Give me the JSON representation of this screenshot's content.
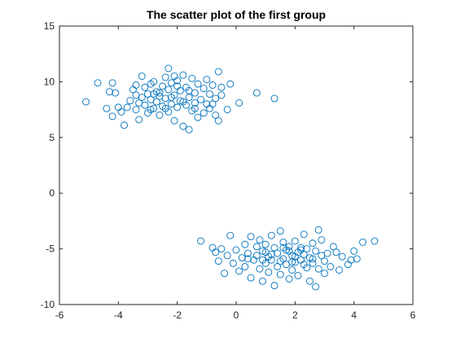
{
  "chart_data": {
    "type": "scatter",
    "title": "The scatter plot of the first group",
    "xlabel": "",
    "ylabel": "",
    "xlim": [
      -6,
      6
    ],
    "ylim": [
      -10,
      15
    ],
    "xticks": [
      -6,
      -4,
      -2,
      0,
      2,
      4,
      6
    ],
    "yticks": [
      -10,
      -5,
      0,
      5,
      10,
      15
    ],
    "grid": false,
    "legend": "none",
    "marker": "open-circle",
    "marker_color": "#0072bd",
    "series": [
      {
        "points": [
          [
            -5.1,
            8.2
          ],
          [
            -4.7,
            9.9
          ],
          [
            -4.4,
            7.6
          ],
          [
            -4.3,
            9.1
          ],
          [
            -4.2,
            9.9
          ],
          [
            -4.2,
            6.9
          ],
          [
            -4.1,
            9.0
          ],
          [
            -4.0,
            7.7
          ],
          [
            -3.9,
            7.3
          ],
          [
            -3.8,
            6.1
          ],
          [
            -3.7,
            7.7
          ],
          [
            -3.6,
            8.3
          ],
          [
            -3.5,
            9.3
          ],
          [
            -3.4,
            7.5
          ],
          [
            -3.4,
            8.8
          ],
          [
            -3.3,
            8.1
          ],
          [
            -3.3,
            6.6
          ],
          [
            -3.2,
            10.5
          ],
          [
            -3.2,
            8.6
          ],
          [
            -3.1,
            9.5
          ],
          [
            -3.1,
            7.9
          ],
          [
            -3.0,
            8.9
          ],
          [
            -3.0,
            7.2
          ],
          [
            -2.9,
            9.8
          ],
          [
            -2.9,
            8.4
          ],
          [
            -2.8,
            7.6
          ],
          [
            -2.8,
            10.0
          ],
          [
            -2.7,
            8.2
          ],
          [
            -2.7,
            9.1
          ],
          [
            -2.6,
            7.0
          ],
          [
            -2.6,
            8.7
          ],
          [
            -2.5,
            9.6
          ],
          [
            -2.5,
            7.8
          ],
          [
            -2.4,
            10.4
          ],
          [
            -2.4,
            8.5
          ],
          [
            -2.3,
            11.2
          ],
          [
            -2.3,
            9.3
          ],
          [
            -2.3,
            7.3
          ],
          [
            -2.2,
            8.0
          ],
          [
            -2.2,
            9.9
          ],
          [
            -2.1,
            6.5
          ],
          [
            -2.1,
            8.8
          ],
          [
            -2.0,
            10.1
          ],
          [
            -2.0,
            7.7
          ],
          [
            -1.9,
            9.2
          ],
          [
            -1.9,
            8.3
          ],
          [
            -1.8,
            6.0
          ],
          [
            -1.8,
            10.6
          ],
          [
            -1.7,
            7.9
          ],
          [
            -1.7,
            9.5
          ],
          [
            -1.6,
            5.7
          ],
          [
            -1.6,
            8.6
          ],
          [
            -1.5,
            10.3
          ],
          [
            -1.5,
            7.4
          ],
          [
            -1.4,
            9.0
          ],
          [
            -1.4,
            8.1
          ],
          [
            -1.3,
            6.8
          ],
          [
            -1.3,
            9.8
          ],
          [
            -1.2,
            8.4
          ],
          [
            -1.1,
            7.2
          ],
          [
            -1.1,
            9.4
          ],
          [
            -1.0,
            8.0
          ],
          [
            -1.0,
            10.2
          ],
          [
            -0.9,
            7.6
          ],
          [
            -0.9,
            8.9
          ],
          [
            -0.8,
            9.7
          ],
          [
            -0.7,
            7.0
          ],
          [
            -0.7,
            8.5
          ],
          [
            -0.6,
            10.9
          ],
          [
            -0.6,
            6.5
          ],
          [
            -0.5,
            8.8
          ],
          [
            -0.5,
            9.5
          ],
          [
            -0.3,
            7.5
          ],
          [
            -0.2,
            9.8
          ],
          [
            0.1,
            8.1
          ],
          [
            0.7,
            9.0
          ],
          [
            1.3,
            8.5
          ],
          [
            -2.4,
            7.6
          ],
          [
            -2.0,
            9.6
          ],
          [
            -2.6,
            9.0
          ],
          [
            -1.8,
            8.2
          ],
          [
            -2.2,
            8.6
          ],
          [
            -2.8,
            8.9
          ],
          [
            -1.6,
            9.2
          ],
          [
            -2.9,
            7.5
          ],
          [
            -1.4,
            7.6
          ],
          [
            -2.1,
            10.5
          ],
          [
            -3.4,
            9.7
          ],
          [
            -0.8,
            8.0
          ]
        ]
      },
      {
        "points": [
          [
            -1.2,
            -4.3
          ],
          [
            -0.8,
            -4.9
          ],
          [
            -0.7,
            -5.3
          ],
          [
            -0.6,
            -6.1
          ],
          [
            -0.5,
            -5.0
          ],
          [
            -0.4,
            -7.2
          ],
          [
            -0.3,
            -5.6
          ],
          [
            -0.2,
            -3.8
          ],
          [
            -0.1,
            -6.3
          ],
          [
            0.0,
            -5.1
          ],
          [
            0.1,
            -7.0
          ],
          [
            0.2,
            -5.8
          ],
          [
            0.3,
            -4.6
          ],
          [
            0.3,
            -6.6
          ],
          [
            0.4,
            -5.4
          ],
          [
            0.5,
            -3.9
          ],
          [
            0.5,
            -7.6
          ],
          [
            0.6,
            -6.0
          ],
          [
            0.7,
            -4.8
          ],
          [
            0.7,
            -5.6
          ],
          [
            0.8,
            -6.8
          ],
          [
            0.8,
            -4.2
          ],
          [
            0.9,
            -5.2
          ],
          [
            0.9,
            -7.9
          ],
          [
            1.0,
            -6.3
          ],
          [
            1.0,
            -4.6
          ],
          [
            1.1,
            -5.7
          ],
          [
            1.1,
            -7.1
          ],
          [
            1.2,
            -3.8
          ],
          [
            1.2,
            -6.0
          ],
          [
            1.3,
            -4.9
          ],
          [
            1.3,
            -8.3
          ],
          [
            1.4,
            -6.6
          ],
          [
            1.4,
            -5.4
          ],
          [
            1.5,
            -3.4
          ],
          [
            1.5,
            -7.3
          ],
          [
            1.6,
            -5.9
          ],
          [
            1.6,
            -4.4
          ],
          [
            1.7,
            -6.4
          ],
          [
            1.7,
            -5.1
          ],
          [
            1.8,
            -7.7
          ],
          [
            1.8,
            -4.8
          ],
          [
            1.9,
            -5.6
          ],
          [
            1.9,
            -6.9
          ],
          [
            2.0,
            -4.3
          ],
          [
            2.0,
            -6.2
          ],
          [
            2.1,
            -5.3
          ],
          [
            2.1,
            -7.4
          ],
          [
            2.2,
            -4.9
          ],
          [
            2.2,
            -6.0
          ],
          [
            2.3,
            -5.5
          ],
          [
            2.3,
            -3.7
          ],
          [
            2.4,
            -6.7
          ],
          [
            2.4,
            -5.0
          ],
          [
            2.5,
            -7.9
          ],
          [
            2.5,
            -5.8
          ],
          [
            2.6,
            -4.5
          ],
          [
            2.6,
            -6.3
          ],
          [
            2.7,
            -5.2
          ],
          [
            2.7,
            -8.4
          ],
          [
            2.8,
            -3.3
          ],
          [
            2.8,
            -6.8
          ],
          [
            2.9,
            -5.6
          ],
          [
            2.9,
            -4.2
          ],
          [
            3.0,
            -6.1
          ],
          [
            3.0,
            -7.2
          ],
          [
            3.1,
            -5.4
          ],
          [
            3.2,
            -6.6
          ],
          [
            3.4,
            -5.3
          ],
          [
            3.5,
            -6.9
          ],
          [
            3.6,
            -5.7
          ],
          [
            3.8,
            -6.4
          ],
          [
            4.0,
            -5.2
          ],
          [
            4.3,
            -4.4
          ],
          [
            4.7,
            -4.3
          ],
          [
            3.3,
            -4.8
          ],
          [
            3.9,
            -6.0
          ],
          [
            4.1,
            -5.9
          ],
          [
            1.5,
            -6.1
          ],
          [
            2.0,
            -5.7
          ],
          [
            1.8,
            -5.2
          ],
          [
            2.3,
            -6.4
          ],
          [
            1.2,
            -5.5
          ],
          [
            2.6,
            -5.9
          ],
          [
            0.9,
            -6.0
          ],
          [
            1.6,
            -4.9
          ],
          [
            2.2,
            -5.1
          ],
          [
            1.0,
            -5.3
          ],
          [
            0.4,
            -5.9
          ],
          [
            1.9,
            -6.2
          ]
        ]
      }
    ]
  }
}
